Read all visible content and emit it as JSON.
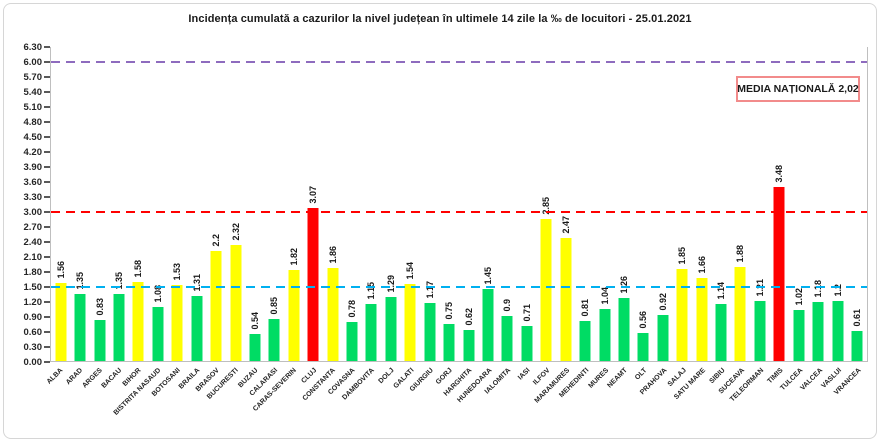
{
  "title": "Incidența cumulată a cazurilor la nivel județean în ultimele 14 zile la ‰ de locuitori - 25.01.2021",
  "media_box": {
    "label": "MEDIA NAȚIONALĂ  2,02"
  },
  "chart_data": {
    "type": "bar",
    "title": "Incidența cumulată a cazurilor la nivel județean în ultimele 14 zile la ‰ de locuitori - 25.01.2021",
    "xlabel": "",
    "ylabel": "",
    "ylim": [
      0,
      6.3
    ],
    "y_tick_step": 0.3,
    "y_ticks": [
      "6.30",
      "6.00",
      "5.70",
      "5.40",
      "5.10",
      "4.80",
      "4.50",
      "4.20",
      "3.90",
      "3.60",
      "3.30",
      "3.00",
      "2.70",
      "2.40",
      "2.10",
      "1.80",
      "1.50",
      "1.20",
      "0.90",
      "0.60",
      "0.30",
      "0.00"
    ],
    "grid": false,
    "legend": false,
    "categories": [
      "ALBA",
      "ARAD",
      "ARGES",
      "BACAU",
      "BIHOR",
      "BISTRITA NASAUD",
      "BOTOSANI",
      "BRAILA",
      "BRASOV",
      "BUCURESTI",
      "BUZAU",
      "CALARASI",
      "CARAS-SEVERIN",
      "CLUJ",
      "CONSTANTA",
      "COVASNA",
      "DAMBOVITA",
      "DOLJ",
      "GALATI",
      "GIURGIU",
      "GORJ",
      "HARGHITA",
      "HUNEDOARA",
      "IALOMITA",
      "IASI",
      "ILFOV",
      "MARAMURES",
      "MEHEDINTI",
      "MURES",
      "NEAMT",
      "OLT",
      "PRAHOVA",
      "SALAJ",
      "SATU MARE",
      "SIBIU",
      "SUCEAVA",
      "TELEORMAN",
      "TIMIS",
      "TULCEA",
      "VALCEA",
      "VASLUI",
      "VRANCEA"
    ],
    "values": [
      1.56,
      1.35,
      0.83,
      1.35,
      1.58,
      1.08,
      1.53,
      1.31,
      2.2,
      2.32,
      0.54,
      0.85,
      1.82,
      3.07,
      1.86,
      0.78,
      1.15,
      1.29,
      1.54,
      1.17,
      0.75,
      0.62,
      1.45,
      0.9,
      0.71,
      2.85,
      2.47,
      0.81,
      1.04,
      1.26,
      0.56,
      0.92,
      1.85,
      1.66,
      1.14,
      1.88,
      1.21,
      3.48,
      1.02,
      1.18,
      1.2,
      0.61
    ],
    "value_labels": [
      "1.56",
      "1.35",
      "0.83",
      "1.35",
      "1.58",
      "1.08",
      "1.53",
      "1.31",
      "2.2",
      "2.32",
      "0.54",
      "0.85",
      "1.82",
      "3.07",
      "1.86",
      "0.78",
      "1.15",
      "1.29",
      "1.54",
      "1.17",
      "0.75",
      "0.62",
      "1.45",
      "0.9",
      "0.71",
      "2.85",
      "2.47",
      "0.81",
      "1.04",
      "1.26",
      "0.56",
      "0.92",
      "1.85",
      "1.66",
      "1.14",
      "1.88",
      "1.21",
      "3.48",
      "1.02",
      "1.18",
      "1.2",
      "0.61"
    ],
    "bar_color_names": [
      "yellow",
      "green",
      "green",
      "green",
      "yellow",
      "green",
      "yellow",
      "green",
      "yellow",
      "yellow",
      "green",
      "green",
      "yellow",
      "red",
      "yellow",
      "green",
      "green",
      "green",
      "yellow",
      "green",
      "green",
      "green",
      "green",
      "green",
      "green",
      "yellow",
      "yellow",
      "green",
      "green",
      "green",
      "green",
      "green",
      "yellow",
      "yellow",
      "green",
      "yellow",
      "green",
      "red",
      "green",
      "green",
      "green",
      "green"
    ],
    "colors": {
      "green": "#00dc64",
      "yellow": "#ffff00",
      "red": "#ff0000"
    },
    "reference_lines": [
      {
        "value": 6.0,
        "name": "upper-threshold",
        "color": "#8e6bbe"
      },
      {
        "value": 3.0,
        "name": "red-zone-threshold",
        "color": "#ff0000"
      },
      {
        "value": 1.5,
        "name": "yellow-zone-threshold",
        "color": "#00b0f0"
      }
    ],
    "annotation": "MEDIA NAȚIONALĂ  2,02"
  }
}
